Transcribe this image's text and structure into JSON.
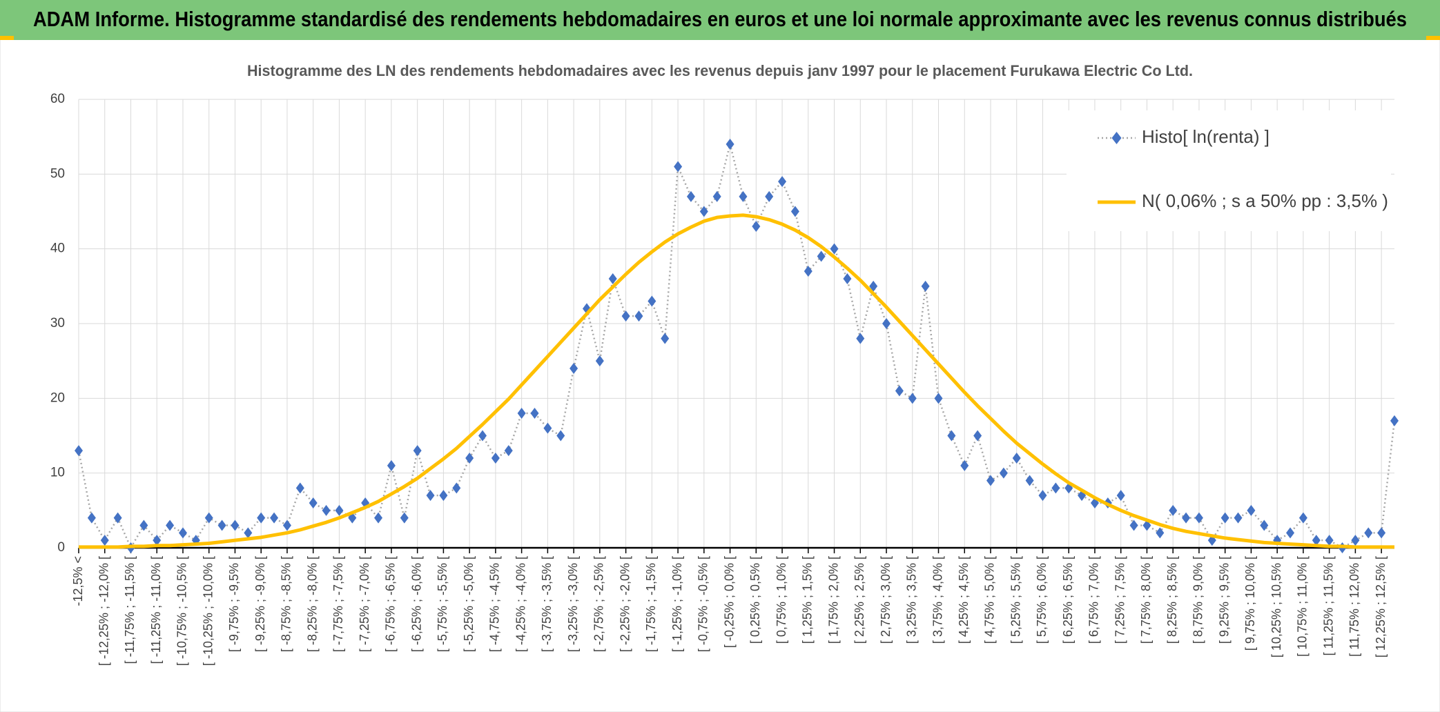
{
  "header": {
    "title": "ADAM Informe. Histogramme standardisé des rendements hebdomadaires en euros et une loi normale approximante avec les revenus connus distribués"
  },
  "chart_data": {
    "type": "line",
    "title": "Histogramme des LN des rendements hebdomadaires avec les revenus depuis janv 1997 pour le placement Furukawa Electric Co Ltd.",
    "categories": [
      "-12,5% <",
      null,
      "[ -12,25% ; -12,0% [",
      null,
      "[ -11,75% ; -11,5% [",
      null,
      "[ -11,25% ; -11,0% [",
      null,
      "[ -10,75% ; -10,5% [",
      null,
      "[ -10,25% ; -10,0% [",
      null,
      "[ -9,75% ; -9,5% [",
      null,
      "[ -9,25% ; -9,0% [",
      null,
      "[ -8,75% ; -8,5% [",
      null,
      "[ -8,25% ; -8,0% [",
      null,
      "[ -7,75% ; -7,5% [",
      null,
      "[ -7,25% ; -7,0% [",
      null,
      "[ -6,75% ; -6,5% [",
      null,
      "[ -6,25% ; -6,0% [",
      null,
      "[ -5,75% ; -5,5% [",
      null,
      "[ -5,25% ; -5,0% [",
      null,
      "[ -4,75% ; -4,5% [",
      null,
      "[ -4,25% ; -4,0% [",
      null,
      "[ -3,75% ; -3,5% [",
      null,
      "[ -3,25% ; -3,0% [",
      null,
      "[ -2,75% ; -2,5% [",
      null,
      "[ -2,25% ; -2,0% [",
      null,
      "[ -1,75% ; -1,5% [",
      null,
      "[ -1,25% ; -1,0% [",
      null,
      "[ -0,75% ; -0,5% [",
      null,
      "[ -0,25% ; 0,0% [",
      null,
      "[ 0,25% ; 0,5% [",
      null,
      "[ 0,75% ; 1,0% [",
      null,
      "[ 1,25% ; 1,5% [",
      null,
      "[ 1,75% ; 2,0% [",
      null,
      "[ 2,25% ; 2,5% [",
      null,
      "[ 2,75% ; 3,0% [",
      null,
      "[ 3,25% ; 3,5% [",
      null,
      "[ 3,75% ; 4,0% [",
      null,
      "[ 4,25% ; 4,5% [",
      null,
      "[ 4,75% ; 5,0% [",
      null,
      "[ 5,25% ; 5,5% [",
      null,
      "[ 5,75% ; 6,0% [",
      null,
      "[ 6,25% ; 6,5% [",
      null,
      "[ 6,75% ; 7,0% [",
      null,
      "[ 7,25% ; 7,5% [",
      null,
      "[ 7,75% ; 8,0% [",
      null,
      "[ 8,25% ; 8,5% [",
      null,
      "[ 8,75% ; 9,0% [",
      null,
      "[ 9,25% ; 9,5% [",
      null,
      "[ 9,75% ; 10,0% [",
      null,
      "[ 10,25% ; 10,5% [",
      null,
      "[ 10,75% ; 11,0% [",
      null,
      "[ 11,25% ; 11,5% [",
      null,
      "[ 11,75% ; 12,0% [",
      null,
      "[ 12,25% ; 12,5% [",
      null
    ],
    "series": [
      {
        "name": "Histo[ ln(renta) ]",
        "color": "#4472c4",
        "line_color": "#a6a6a6",
        "marker": "diamond",
        "values": [
          13,
          4,
          1,
          4,
          0,
          3,
          1,
          3,
          2,
          1,
          4,
          3,
          3,
          2,
          4,
          4,
          3,
          8,
          6,
          5,
          5,
          4,
          6,
          4,
          11,
          4,
          13,
          7,
          7,
          8,
          12,
          15,
          12,
          13,
          18,
          18,
          16,
          15,
          24,
          32,
          25,
          36,
          31,
          31,
          33,
          28,
          51,
          47,
          45,
          47,
          54,
          47,
          43,
          47,
          49,
          45,
          37,
          39,
          40,
          36,
          28,
          35,
          30,
          21,
          20,
          35,
          20,
          15,
          11,
          15,
          9,
          10,
          12,
          9,
          7,
          8,
          8,
          7,
          6,
          6,
          7,
          3,
          3,
          2,
          5,
          4,
          4,
          1,
          4,
          4,
          5,
          3,
          1,
          2,
          4,
          1,
          1,
          0,
          1,
          2,
          2,
          17
        ]
      },
      {
        "name": "N( 0,06% ; s a 50% pp : 3,5% )",
        "color": "#ffc000",
        "values": [
          0.1,
          0.1,
          0.1,
          0.1,
          0.2,
          0.2,
          0.3,
          0.3,
          0.4,
          0.5,
          0.6,
          0.8,
          1.0,
          1.2,
          1.4,
          1.7,
          2.0,
          2.4,
          2.9,
          3.4,
          4.0,
          4.7,
          5.4,
          6.2,
          7.2,
          8.2,
          9.3,
          10.6,
          11.9,
          13.3,
          14.9,
          16.5,
          18.2,
          19.9,
          21.8,
          23.7,
          25.6,
          27.5,
          29.4,
          31.3,
          33.2,
          34.9,
          36.6,
          38.2,
          39.6,
          40.9,
          42.0,
          42.9,
          43.7,
          44.2,
          44.4,
          44.5,
          44.3,
          43.9,
          43.3,
          42.5,
          41.5,
          40.3,
          38.9,
          37.4,
          35.8,
          34.0,
          32.2,
          30.3,
          28.4,
          26.5,
          24.6,
          22.7,
          20.8,
          19.0,
          17.3,
          15.6,
          14.0,
          12.6,
          11.2,
          9.9,
          8.7,
          7.7,
          6.7,
          5.8,
          5.0,
          4.3,
          3.7,
          3.1,
          2.6,
          2.2,
          1.9,
          1.6,
          1.3,
          1.1,
          0.9,
          0.7,
          0.6,
          0.5,
          0.4,
          0.3,
          0.2,
          0.2,
          0.1,
          0.1,
          0.1,
          0.1
        ]
      }
    ],
    "ylim": [
      0,
      60
    ],
    "yticks": [
      0,
      10,
      20,
      30,
      40,
      50,
      60
    ],
    "grid": true,
    "legend": "upper right"
  }
}
